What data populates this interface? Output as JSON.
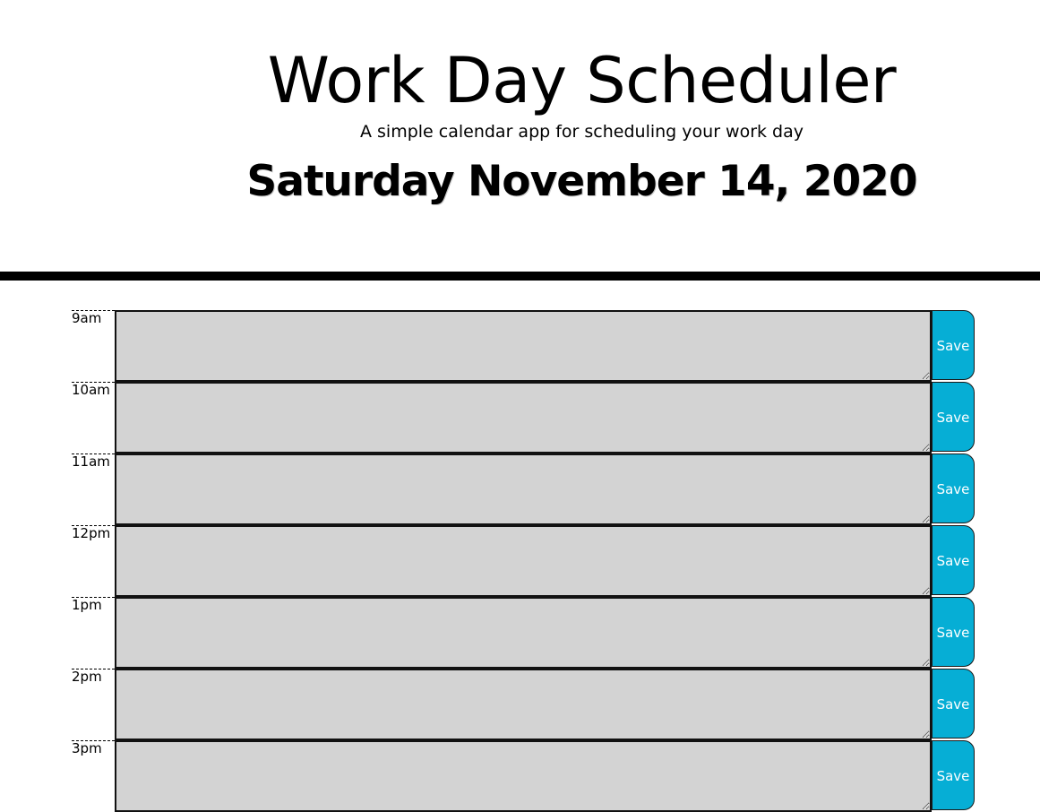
{
  "header": {
    "title": "Work Day Scheduler",
    "subtitle": "A simple calendar app for scheduling your work day",
    "current_day": "Saturday November 14, 2020"
  },
  "rows": [
    {
      "hour": "9am",
      "value": "",
      "save_label": "Save"
    },
    {
      "hour": "10am",
      "value": "",
      "save_label": "Save"
    },
    {
      "hour": "11am",
      "value": "",
      "save_label": "Save"
    },
    {
      "hour": "12pm",
      "value": "",
      "save_label": "Save"
    },
    {
      "hour": "1pm",
      "value": "",
      "save_label": "Save"
    },
    {
      "hour": "2pm",
      "value": "",
      "save_label": "Save"
    },
    {
      "hour": "3pm",
      "value": "",
      "save_label": "Save"
    }
  ],
  "colors": {
    "past": "#d3d3d3",
    "save_button": "#06aed5",
    "header_rule": "#000000"
  }
}
